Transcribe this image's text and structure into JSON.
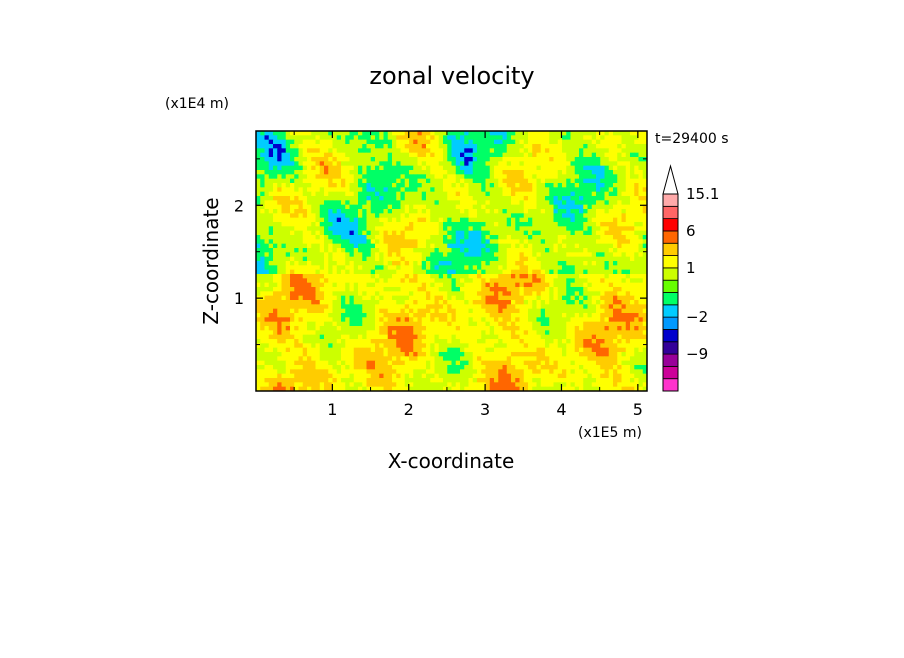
{
  "chart_data": {
    "type": "heatmap",
    "title": "zonal velocity",
    "xlabel": "X-coordinate",
    "ylabel": "Z-coordinate",
    "x_unit": "(x1E5 m)",
    "y_unit": "(x1E4 m)",
    "time_label": "t=29400 s",
    "x_ticks": [
      1,
      2,
      3,
      4,
      5
    ],
    "y_ticks": [
      1,
      2
    ],
    "xlim": [
      0,
      5.12
    ],
    "ylim": [
      0,
      2.8
    ],
    "grid": false,
    "legend": "right",
    "colorbar": {
      "levels": [
        {
          "max": null,
          "color": "#ff33cc"
        },
        {
          "max": -12,
          "color": "#cc0099"
        },
        {
          "max": -9,
          "color": "#990099"
        },
        {
          "max": -6,
          "color": "#330099"
        },
        {
          "max": -4,
          "color": "#0000cc"
        },
        {
          "max": -2,
          "color": "#0099ff"
        },
        {
          "max": -1,
          "color": "#00ccff"
        },
        {
          "max": 0,
          "color": "#00ff66"
        },
        {
          "max": 0.5,
          "color": "#66ff00"
        },
        {
          "max": 1,
          "color": "#ccff00"
        },
        {
          "max": 2,
          "color": "#ffff00"
        },
        {
          "max": 3,
          "color": "#ffcc00"
        },
        {
          "max": 6,
          "color": "#ff6600"
        },
        {
          "max": 9,
          "color": "#ff0000"
        },
        {
          "max": 12,
          "color": "#ff6666"
        },
        {
          "max": 15.1,
          "color": "#ffaaaa"
        },
        {
          "max": null,
          "color": "#ffffff"
        }
      ],
      "labels": [
        {
          "text": "15.1",
          "value": 15.1
        },
        {
          "text": "6",
          "value": 6
        },
        {
          "text": "1",
          "value": 1
        },
        {
          "text": "−2",
          "value": -2
        },
        {
          "text": "−9",
          "value": -9
        }
      ]
    },
    "field_palette": [
      "#0000cc",
      "#00ccff",
      "#00ff66",
      "#ccff00",
      "#ffff00",
      "#ffcc00",
      "#ff6600"
    ]
  }
}
